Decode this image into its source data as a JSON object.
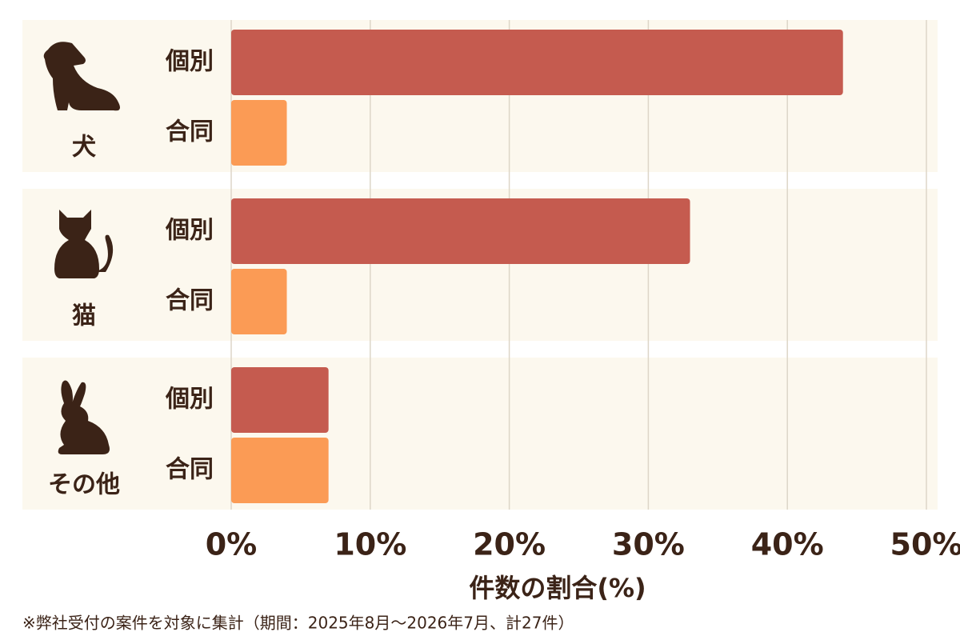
{
  "chart_data": {
    "type": "hbar-grouped",
    "categories": [
      "犬",
      "猫",
      "その他"
    ],
    "series": [
      {
        "name": "個別",
        "color": "#c55b4f",
        "values": [
          44,
          33,
          7
        ]
      },
      {
        "name": "合同",
        "color": "#fb9b55",
        "values": [
          4,
          4,
          7
        ]
      }
    ],
    "xlim": [
      0,
      50
    ],
    "xticks": [
      {
        "value": 0,
        "label": "0%"
      },
      {
        "value": 10,
        "label": "10%"
      },
      {
        "value": 20,
        "label": "20%"
      },
      {
        "value": 30,
        "label": "30%"
      },
      {
        "value": 40,
        "label": "40%"
      },
      {
        "value": 50,
        "label": "50%"
      }
    ],
    "grid": true,
    "xlabel": "件数の割合(%)",
    "note": "※弊社受付の案件を対象に集計（期間：2025年8月～2026年7月、計27件）"
  }
}
